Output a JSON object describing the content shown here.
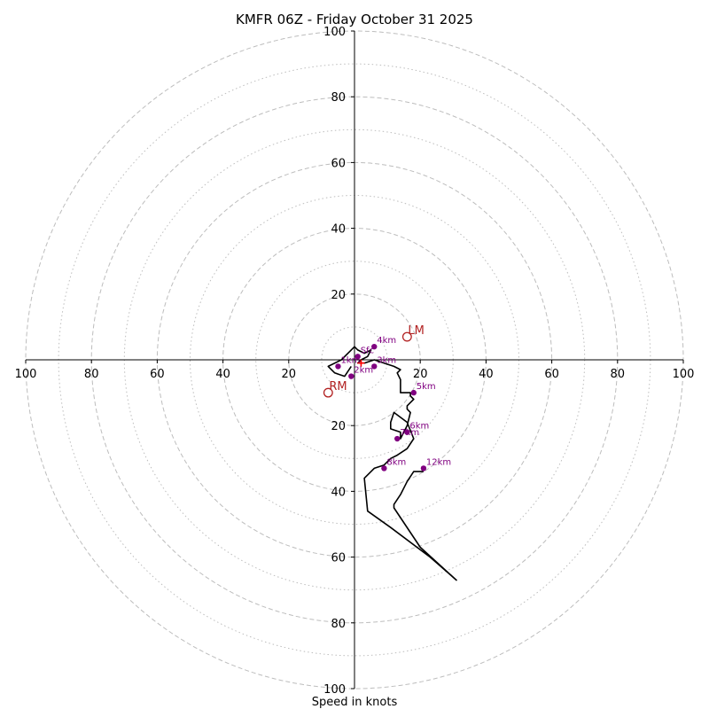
{
  "chart_data": {
    "type": "hodograph",
    "title": "KMFR 06Z - Friday October 31 2025",
    "xlabel": "Speed in knots",
    "range": [
      -100,
      100
    ],
    "ring_major": [
      20,
      40,
      60,
      80,
      100
    ],
    "ring_minor": [
      10,
      30,
      50,
      70,
      90
    ],
    "x_tick_labels": [
      "100",
      "80",
      "60",
      "40",
      "20",
      "20",
      "40",
      "60",
      "80",
      "100"
    ],
    "y_tick_labels": [
      "100",
      "80",
      "60",
      "40",
      "20",
      "20",
      "40",
      "60",
      "80",
      "100"
    ],
    "colors": {
      "trace": "#000000",
      "height_marker": "#800080",
      "storm_motion": "#b22222",
      "grid": "#bdbdbd",
      "mean_wind": "#ff0000"
    },
    "trace": {
      "u": [
        -1,
        -3,
        -6,
        -8,
        -4,
        -1,
        0,
        1,
        3,
        5,
        4,
        2,
        1,
        3,
        6,
        9,
        12,
        14,
        13,
        14,
        14,
        17,
        17,
        18,
        17,
        16,
        16,
        17,
        16,
        14,
        14,
        11,
        11,
        12,
        16,
        18,
        16,
        13,
        11,
        9,
        6,
        3,
        4,
        11,
        23,
        31,
        20,
        12,
        12,
        14,
        16,
        18,
        21
      ],
      "v": [
        -2,
        -5,
        -4,
        -2,
        0,
        3,
        4,
        3,
        2,
        3,
        1,
        0,
        -1,
        -1,
        0,
        -1,
        -2,
        -3,
        -4,
        -6,
        -10,
        -10,
        -11,
        -12,
        -13,
        -14,
        -15,
        -16,
        -20,
        -24,
        -22,
        -21,
        -19,
        -16,
        -19,
        -24,
        -27,
        -29,
        -30,
        -32,
        -33,
        -36,
        -46,
        -51,
        -60,
        -67,
        -57,
        -45,
        -44,
        -41,
        -37,
        -34,
        -34
      ]
    },
    "height_markers": [
      {
        "label": "Sfc",
        "u": 1,
        "v": 1
      },
      {
        "label": "1km",
        "u": -5,
        "v": -2
      },
      {
        "label": "2km",
        "u": -1,
        "v": -5
      },
      {
        "label": "3km",
        "u": 6,
        "v": -2
      },
      {
        "label": "4km",
        "u": 6,
        "v": 4
      },
      {
        "label": "5km",
        "u": 18,
        "v": -10
      },
      {
        "label": "6km",
        "u": 16,
        "v": -22
      },
      {
        "label": "7km",
        "u": 13,
        "v": -24
      },
      {
        "label": "8km",
        "u": 9,
        "v": -33
      },
      {
        "label": "12km",
        "u": 21,
        "v": -33
      }
    ],
    "storm_motion": [
      {
        "label": "LM",
        "u": 16,
        "v": 7
      },
      {
        "label": "RM",
        "u": -8,
        "v": -10
      }
    ],
    "mean_wind": {
      "u": 2,
      "v": -1
    }
  }
}
